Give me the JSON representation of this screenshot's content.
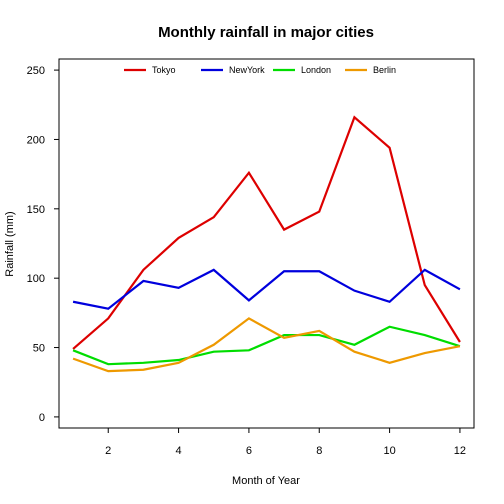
{
  "chart_data": {
    "type": "line",
    "title": "Monthly rainfall in major cities",
    "xlabel": "Month of Year",
    "ylabel": "Rainfall (mm)",
    "x": [
      1,
      2,
      3,
      4,
      5,
      6,
      7,
      8,
      9,
      10,
      11,
      12
    ],
    "xlim": [
      0.6,
      12.4
    ],
    "ylim": [
      -8,
      258
    ],
    "xticks": [
      2,
      4,
      6,
      8,
      10,
      12
    ],
    "yticks": [
      0,
      50,
      100,
      150,
      200,
      250
    ],
    "grid": false,
    "legend_position": "top",
    "series": [
      {
        "name": "Tokyo",
        "color": "#DD0000",
        "values": [
          49,
          71,
          106,
          129,
          144,
          176,
          135,
          148,
          216,
          194,
          95,
          54
        ]
      },
      {
        "name": "NewYork",
        "color": "#0000DD",
        "values": [
          83,
          78,
          98,
          93,
          106,
          84,
          105,
          105,
          91,
          83,
          106,
          92
        ]
      },
      {
        "name": "London",
        "color": "#00DD00",
        "values": [
          48,
          38,
          39,
          41,
          47,
          48,
          59,
          59,
          52,
          65,
          59,
          51
        ]
      },
      {
        "name": "Berlin",
        "color": "#EE9900",
        "values": [
          42,
          33,
          34,
          39,
          52,
          71,
          57,
          62,
          47,
          39,
          46,
          51
        ]
      }
    ]
  }
}
